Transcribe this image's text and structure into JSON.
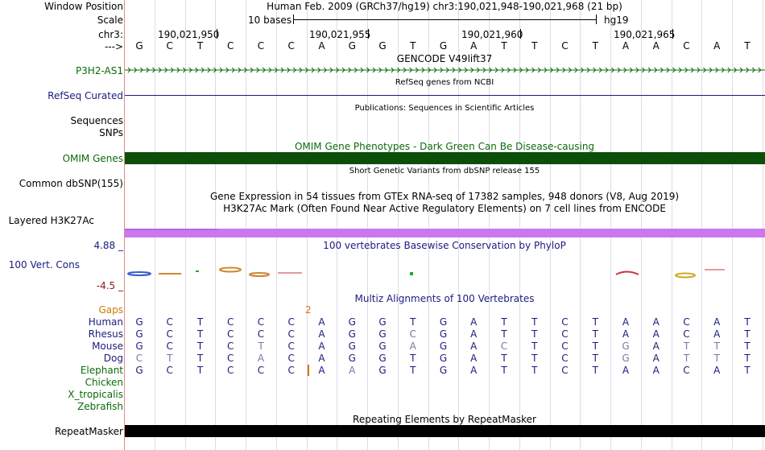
{
  "labels": {
    "window_position": "Window Position",
    "scale": "Scale",
    "chr": "chr3:",
    "arrow": "--->",
    "p3h2": "P3H2-AS1",
    "refseq": "RefSeq Curated",
    "sequences": "Sequences",
    "snps": "SNPs",
    "omim": "OMIM Genes",
    "dbsnp": "Common dbSNP(155)",
    "h3k27ac": "Layered H3K27Ac",
    "cons_max": "4.88 _",
    "cons": "100 Vert. Cons",
    "cons_min": "-4.5 _",
    "gaps": "Gaps",
    "repeatmasker": "RepeatMasker"
  },
  "header": {
    "position_text": "Human Feb. 2009 (GRCh37/hg19)   chr3:190,021,948-190,021,968 (21 bp)",
    "scale_text": "10 bases",
    "assembly": "hg19"
  },
  "ruler": {
    "positions": [
      "190,021,950",
      "190,021,955",
      "190,021,960",
      "190,021,965"
    ]
  },
  "bases": [
    "G",
    "C",
    "T",
    "C",
    "C",
    "C",
    "A",
    "G",
    "G",
    "T",
    "G",
    "A",
    "T",
    "T",
    "C",
    "T",
    "A",
    "A",
    "C",
    "A",
    "T"
  ],
  "tracks": {
    "gencode": "GENCODE V49lift37",
    "refseq": "RefSeq genes from NCBI",
    "publications": "Publications: Sequences in Scientific Articles",
    "omim": "OMIM Gene Phenotypes - Dark Green Can Be Disease-causing",
    "dbsnp": "Short Genetic Variants from dbSNP release 155",
    "gtex": "Gene Expression in 54 tissues from GTEx RNA-seq of 17382 samples, 948 donors (V8, Aug 2019)",
    "h3k27ac": "H3K27Ac Mark (Often Found Near Active Regulatory Elements) on 7 cell lines from ENCODE",
    "phylop": "100 vertebrates Basewise Conservation by PhyloP",
    "multiz": "Multiz Alignments of 100 Vertebrates",
    "repeatmasker": "Repeating Elements by RepeatMasker"
  },
  "gaps_value": "2",
  "species": [
    {
      "name": "Human",
      "seq": "GCTCCCAGGTGATTCTAACAT",
      "mask": "000000000000000000000"
    },
    {
      "name": "Rhesus",
      "seq": "GCTCCCAGGCGATTCTAACAT",
      "mask": "000000000100000000000"
    },
    {
      "name": "Mouse",
      "seq": "GCTCTCAGGAGACTCTGATTT",
      "mask": "000010000100100010110"
    },
    {
      "name": "Dog",
      "seq": "CTTCACAGGTGATTCTGATTT",
      "mask": "110010000000000010110"
    },
    {
      "name": "Elephant",
      "seq": "GCTCCC|AAGTGATTCTAACAT",
      "mask": "0000000010000000000000"
    },
    {
      "name": "Chicken",
      "seq": "",
      "mask": ""
    },
    {
      "name": "X_tropicalis",
      "seq": "",
      "mask": ""
    },
    {
      "name": "Zebrafish",
      "seq": "",
      "mask": ""
    }
  ],
  "colors": {
    "omim": "#0b4f0b",
    "h3k27ac": "#cc77ee",
    "repeatmasker": "#000000",
    "gaps_label": "#d07a00",
    "track_blue": "#1b1b80",
    "gene_green": "#0b6b0b"
  }
}
